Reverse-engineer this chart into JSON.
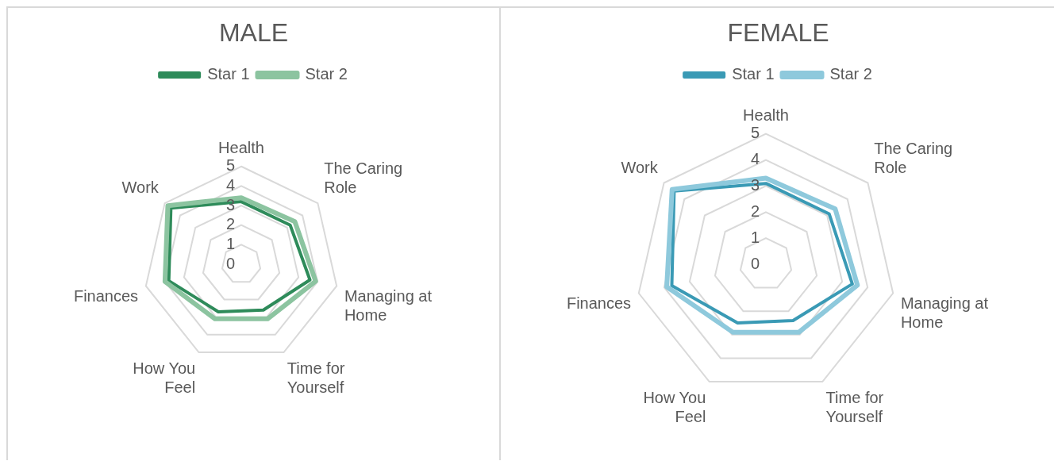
{
  "chart_data": [
    {
      "type": "radar",
      "title": "MALE",
      "categories": [
        "Health",
        "The Caring Role",
        "Managing at Home",
        "Time for Yourself",
        "How You Feel",
        "Finances",
        "Work"
      ],
      "series": [
        {
          "name": "Star 1",
          "color": "#2e8b5a",
          "values": [
            3.2,
            3.2,
            3.6,
            2.6,
            2.7,
            3.8,
            4.6
          ]
        },
        {
          "name": "Star 2",
          "color": "#8cc4a0",
          "values": [
            3.4,
            3.5,
            3.9,
            3.1,
            3.1,
            4.0,
            4.8
          ]
        }
      ],
      "ylim": [
        0,
        5
      ],
      "yticks": [
        0,
        1,
        2,
        3,
        4,
        5
      ],
      "grid": true,
      "legend": "top",
      "marker": "none"
    },
    {
      "type": "radar",
      "title": "FEMALE",
      "categories": [
        "Health",
        "The Caring Role",
        "Managing at Home",
        "Time for Yourself",
        "How You Feel",
        "Finances",
        "Work"
      ],
      "series": [
        {
          "name": "Star 1",
          "color": "#3a9ab5",
          "values": [
            3.1,
            3.1,
            3.4,
            2.4,
            2.5,
            3.7,
            4.5
          ]
        },
        {
          "name": "Star 2",
          "color": "#8ec9dc",
          "values": [
            3.3,
            3.4,
            3.6,
            2.9,
            2.9,
            3.9,
            4.6
          ]
        }
      ],
      "ylim": [
        0,
        5
      ],
      "yticks": [
        0,
        1,
        2,
        3,
        4,
        5
      ],
      "grid": true,
      "legend": "top",
      "marker": "none"
    }
  ]
}
